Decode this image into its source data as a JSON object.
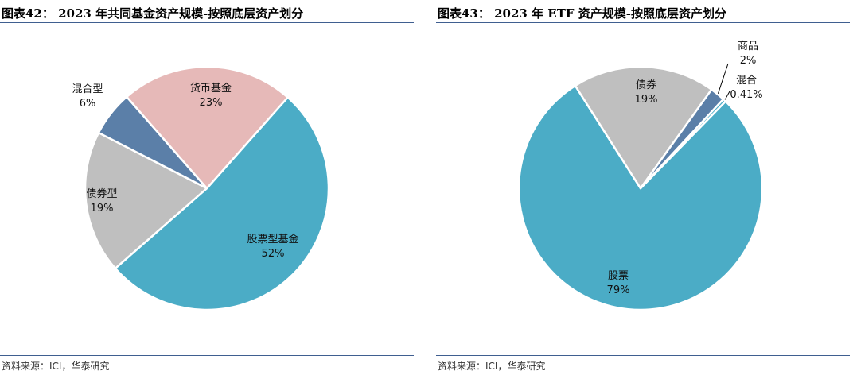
{
  "source_text": "资料来源：ICI，华泰研究",
  "chart_data": [
    {
      "type": "pie",
      "title": "图表42：  2023 年共同基金资产规模-按照底层资产划分",
      "slices": [
        {
          "label": "股票型基金",
          "value": 52,
          "value_label": "52%",
          "color": "#4bacc6"
        },
        {
          "label": "债券型",
          "value": 19,
          "value_label": "19%",
          "color": "#bfbfbf"
        },
        {
          "label": "混合型",
          "value": 6,
          "value_label": "6%",
          "color": "#5b7fa8"
        },
        {
          "label": "货币基金",
          "value": 23,
          "value_label": "23%",
          "color": "#e6b9b8"
        }
      ],
      "legend": "none"
    },
    {
      "type": "pie",
      "title": "图表43：  2023 年 ETF 资产规模-按照底层资产划分",
      "slices": [
        {
          "label": "股票",
          "value": 79,
          "value_label": "79%",
          "color": "#4bacc6"
        },
        {
          "label": "债券",
          "value": 19,
          "value_label": "19%",
          "color": "#bfbfbf"
        },
        {
          "label": "商品",
          "value": 2,
          "value_label": "2%",
          "color": "#5b7fa8"
        },
        {
          "label": "混合",
          "value": 0.41,
          "value_label": "0.41%",
          "color": "#4bacc6"
        }
      ],
      "legend": "none"
    }
  ]
}
